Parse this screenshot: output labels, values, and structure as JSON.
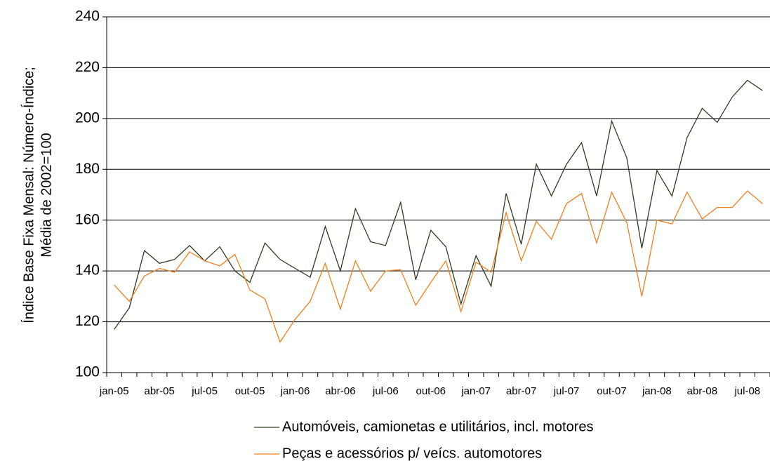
{
  "chart_data": {
    "type": "line",
    "ylabel": [
      "Índice Base Fixa Mensal: Número-Índice;",
      "Média de 2002=100"
    ],
    "categories": [
      "jan-05",
      null,
      null,
      "abr-05",
      null,
      null,
      "jul-05",
      null,
      null,
      "out-05",
      null,
      null,
      "jan-06",
      null,
      null,
      "abr-06",
      null,
      null,
      "jul-06",
      null,
      null,
      "out-06",
      null,
      null,
      "jan-07",
      null,
      null,
      "abr-07",
      null,
      null,
      "jul-07",
      null,
      null,
      "out-07",
      null,
      null,
      "jan-08",
      null,
      null,
      "abr-08",
      null,
      null,
      "jul-08",
      null
    ],
    "series": [
      {
        "name": "Automóveis, camionetas e utilitários, incl. motores",
        "color": "#2e3d1f",
        "values": [
          117,
          125.5,
          148,
          143,
          144.5,
          150,
          144,
          149.5,
          140,
          135.5,
          151,
          144.5,
          141,
          137.5,
          157.5,
          140,
          164.5,
          151.5,
          150,
          167,
          136.5,
          156,
          149.5,
          127,
          146,
          134,
          170.5,
          150.5,
          182,
          169.5,
          182,
          190.5,
          169.5,
          199,
          184.5,
          149,
          179.5,
          169.5,
          192.5,
          204,
          198.5,
          208.5,
          215,
          211
        ]
      },
      {
        "name": "Peças e acessórios p/ veícs. automotores",
        "color": "#f07f1f",
        "values": [
          134.5,
          128,
          138,
          141,
          139.5,
          147.5,
          144,
          142,
          146.5,
          132.5,
          129,
          112,
          121,
          128,
          143,
          125,
          144,
          132,
          140,
          140.5,
          126.5,
          135.5,
          144,
          124,
          143.5,
          139.5,
          163,
          144,
          159.5,
          152.5,
          166.5,
          170.5,
          151,
          171,
          159,
          130,
          160,
          158.5,
          171,
          160.5,
          165,
          165,
          171.5,
          166.5
        ]
      }
    ],
    "ylim": [
      100,
      240
    ],
    "yticks": [
      100,
      120,
      140,
      160,
      180,
      200,
      220,
      240
    ],
    "grid": true
  }
}
